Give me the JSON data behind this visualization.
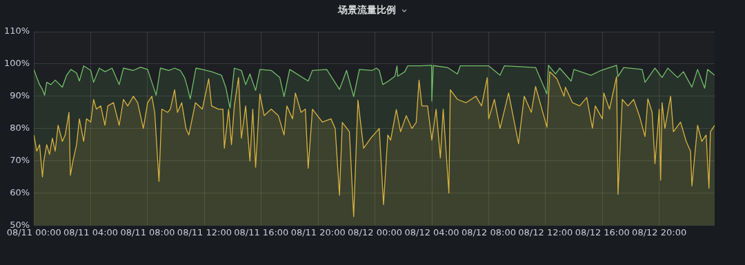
{
  "chart_data": {
    "type": "area",
    "title": "场景流量比例",
    "xlim": [
      "--08-11T00:00",
      "--08-12T23:54"
    ],
    "ylim": [
      50,
      110
    ],
    "xticks": [
      {
        "value": "--08-11T00:00",
        "label": "08/11 00:00"
      },
      {
        "value": "--08-11T04:00",
        "label": "08/11 04:00"
      },
      {
        "value": "--08-11T08:00",
        "label": "08/11 08:00"
      },
      {
        "value": "--08-11T12:00",
        "label": "08/11 12:00"
      },
      {
        "value": "--08-11T16:00",
        "label": "08/11 16:00"
      },
      {
        "value": "--08-11T20:00",
        "label": "08/11 20:00"
      },
      {
        "value": "--08-12T00:00",
        "label": "08/12 00:00"
      },
      {
        "value": "--08-12T04:00",
        "label": "08/12 04:00"
      },
      {
        "value": "--08-12T08:00",
        "label": "08/12 08:00"
      },
      {
        "value": "--08-12T12:00",
        "label": "08/12 12:00"
      },
      {
        "value": "--08-12T16:00",
        "label": "08/12 16:00"
      },
      {
        "value": "--08-12T20:00",
        "label": "08/12 20:00"
      }
    ],
    "yticks": [
      {
        "value": 50,
        "label": "50%"
      },
      {
        "value": 60,
        "label": "60%"
      },
      {
        "value": 70,
        "label": "70%"
      },
      {
        "value": 80,
        "label": "80%"
      },
      {
        "value": 90,
        "label": "90%"
      },
      {
        "value": 100,
        "label": "100%"
      },
      {
        "value": 110,
        "label": "110%"
      }
    ],
    "grid": true,
    "legend": false,
    "marker": "none",
    "line_style": "solid",
    "series": [
      {
        "color": "#73bf69",
        "x": [
          "--08-11T00:00",
          "--08-11T00:12",
          "--08-11T00:24",
          "--08-11T00:36",
          "--08-11T00:45",
          "--08-11T00:54",
          "--08-11T01:12",
          "--08-11T01:30",
          "--08-11T02:00",
          "--08-11T02:18",
          "--08-11T02:36",
          "--08-11T03:00",
          "--08-11T03:12",
          "--08-11T03:30",
          "--08-11T04:00",
          "--08-11T04:12",
          "--08-11T04:36",
          "--08-11T05:00",
          "--08-11T05:30",
          "--08-11T06:00",
          "--08-11T06:18",
          "--08-11T07:00",
          "--08-11T07:30",
          "--08-11T08:00",
          "--08-11T08:36",
          "--08-11T08:54",
          "--08-11T09:30",
          "--08-11T09:54",
          "--08-11T10:18",
          "--08-11T10:36",
          "--08-11T10:48",
          "--08-11T11:00",
          "--08-11T11:24",
          "--08-11T11:51",
          "--08-11T12:30",
          "--08-11T13:12",
          "--08-11T13:30",
          "--08-11T13:48",
          "--08-11T14:06",
          "--08-11T14:36",
          "--08-11T14:54",
          "--08-11T15:12",
          "--08-11T15:36",
          "--08-11T15:54",
          "--08-11T16:42",
          "--08-11T17:18",
          "--08-11T17:36",
          "--08-11T18:00",
          "--08-11T19:18",
          "--08-11T19:36",
          "--08-11T20:36",
          "--08-11T21:30",
          "--08-11T22:00",
          "--08-11T22:30",
          "--08-11T22:54",
          "--08-11T23:48",
          "--08-12T00:06",
          "--08-12T00:18",
          "--08-12T00:33",
          "--08-12T00:57",
          "--08-12T01:24",
          "--08-12T01:33",
          "--08-12T01:36",
          "--08-12T02:06",
          "--08-12T02:18",
          "--08-12T03:12",
          "--08-12T03:59",
          "--08-12T04:00",
          "--08-12T04:06",
          "--08-12T05:06",
          "--08-12T05:48",
          "--08-12T06:00",
          "--08-12T08:00",
          "--08-12T08:48",
          "--08-12T09:06",
          "--08-12T11:18",
          "--08-12T12:06",
          "--08-12T12:12",
          "--08-12T12:42",
          "--08-12T13:00",
          "--08-12T13:48",
          "--08-12T14:00",
          "--08-12T15:12",
          "--08-12T15:54",
          "--08-12T17:00",
          "--08-12T17:06",
          "--08-12T17:30",
          "--08-12T18:48",
          "--08-12T19:00",
          "--08-12T19:42",
          "--08-12T20:12",
          "--08-12T20:36",
          "--08-12T21:18",
          "--08-12T21:42",
          "--08-12T22:18",
          "--08-12T22:42",
          "--08-12T23:12",
          "--08-12T23:24",
          "--08-12T23:54"
        ],
        "values": [
          98.3,
          95.8,
          93.6,
          92.1,
          90.3,
          94.3,
          93.6,
          95,
          92.8,
          96.5,
          98.3,
          97.2,
          94.7,
          99.4,
          98,
          94.3,
          98.7,
          97.6,
          98.7,
          93.6,
          98.7,
          98,
          99,
          98.3,
          90.3,
          98.7,
          98,
          98.7,
          98,
          95.8,
          92.8,
          89.2,
          98.7,
          98.3,
          97.6,
          96.5,
          92.8,
          86.3,
          98.7,
          98,
          93.6,
          96.9,
          91.8,
          98.3,
          98,
          95.8,
          89.9,
          98.3,
          94.7,
          98,
          98.3,
          92.1,
          98,
          89.9,
          98.3,
          98,
          98.7,
          98,
          93.6,
          94.7,
          96.2,
          99.4,
          96.2,
          97.6,
          99.4,
          99.4,
          99.6,
          88.5,
          99.5,
          98.9,
          96.9,
          99.4,
          99.4,
          96.5,
          99.4,
          98.9,
          90.7,
          99.6,
          96.9,
          98.7,
          94.7,
          98.3,
          96.5,
          98,
          99.6,
          96.1,
          98.9,
          98.3,
          94.3,
          98.7,
          95.8,
          98.7,
          95.8,
          97.6,
          92.8,
          98.3,
          92.5,
          98.3,
          96.5
        ]
      },
      {
        "color": "#e8b13c",
        "x": [
          "--08-11T00:00",
          "--08-11T00:12",
          "--08-11T00:24",
          "--08-11T00:30",
          "--08-11T00:36",
          "--08-11T00:42",
          "--08-11T00:54",
          "--08-11T01:06",
          "--08-11T01:18",
          "--08-11T01:30",
          "--08-11T01:42",
          "--08-11T02:00",
          "--08-11T02:12",
          "--08-11T02:28",
          "--08-11T02:34",
          "--08-11T02:45",
          "--08-11T03:00",
          "--08-11T03:12",
          "--08-11T03:30",
          "--08-11T03:42",
          "--08-11T04:00",
          "--08-11T04:12",
          "--08-11T04:24",
          "--08-11T04:42",
          "--08-11T05:00",
          "--08-11T05:12",
          "--08-11T05:36",
          "--08-11T06:00",
          "--08-11T06:18",
          "--08-11T06:36",
          "--08-11T07:00",
          "--08-11T07:18",
          "--08-11T07:42",
          "--08-11T08:00",
          "--08-11T08:18",
          "--08-11T08:30",
          "--08-11T08:48",
          "--08-11T09:00",
          "--08-11T09:24",
          "--08-11T09:36",
          "--08-11T09:54",
          "--08-11T10:06",
          "--08-11T10:24",
          "--08-11T10:42",
          "--08-11T10:54",
          "--08-11T11:22",
          "--08-11T11:51",
          "--08-11T12:18",
          "--08-11T12:30",
          "--08-11T12:59",
          "--08-11T13:18",
          "--08-11T13:24",
          "--08-11T13:42",
          "--08-11T13:54",
          "--08-11T14:06",
          "--08-11T14:24",
          "--08-11T14:36",
          "--08-11T14:54",
          "--08-11T15:12",
          "--08-11T15:24",
          "--08-11T15:36",
          "--08-11T15:54",
          "--08-11T16:12",
          "--08-11T16:42",
          "--08-11T17:12",
          "--08-11T17:36",
          "--08-11T17:48",
          "--08-11T18:12",
          "--08-11T18:24",
          "--08-11T18:48",
          "--08-11T19:06",
          "--08-11T19:18",
          "--08-11T19:36",
          "--08-11T20:18",
          "--08-11T20:54",
          "--08-11T21:12",
          "--08-11T21:30",
          "--08-11T21:42",
          "--08-11T22:12",
          "--08-11T22:30",
          "--08-11T22:48",
          "--08-11T23:12",
          "--08-11T23:42",
          "--08-12T00:06",
          "--08-12T00:18",
          "--08-12T00:36",
          "--08-12T00:54",
          "--08-12T01:06",
          "--08-12T01:30",
          "--08-12T01:48",
          "--08-12T02:12",
          "--08-12T02:36",
          "--08-12T02:54",
          "--08-12T03:06",
          "--08-12T03:18",
          "--08-12T03:42",
          "--08-12T04:00",
          "--08-12T04:18",
          "--08-12T04:36",
          "--08-12T04:48",
          "--08-12T05:12",
          "--08-12T05:18",
          "--08-12T05:48",
          "--08-12T06:24",
          "--08-12T07:06",
          "--08-12T07:30",
          "--08-12T07:54",
          "--08-12T08:00",
          "--08-12T08:24",
          "--08-12T08:48",
          "--08-12T09:24",
          "--08-12T10:06",
          "--08-12T10:30",
          "--08-12T11:00",
          "--08-12T11:18",
          "--08-12T12:06",
          "--08-12T12:18",
          "--08-12T12:48",
          "--08-12T13:18",
          "--08-12T13:24",
          "--08-12T13:54",
          "--08-12T14:24",
          "--08-12T14:54",
          "--08-12T15:18",
          "--08-12T15:30",
          "--08-12T16:00",
          "--08-12T16:06",
          "--08-12T16:30",
          "--08-12T17:00",
          "--08-12T17:06",
          "--08-12T17:24",
          "--08-12T17:48",
          "--08-12T18:12",
          "--08-12T18:36",
          "--08-12T19:00",
          "--08-12T19:12",
          "--08-12T19:30",
          "--08-12T19:42",
          "--08-12T20:00",
          "--08-12T20:06",
          "--08-12T20:12",
          "--08-12T20:24",
          "--08-12T20:48",
          "--08-12T21:00",
          "--08-12T21:30",
          "--08-12T21:54",
          "--08-12T22:12",
          "--08-12T22:18",
          "--08-12T22:42",
          "--08-12T23:00",
          "--08-12T23:18",
          "--08-12T23:30",
          "--08-12T23:36",
          "--08-12T23:54"
        ],
        "values": [
          78,
          73,
          75,
          70,
          65,
          70,
          75,
          72,
          77,
          73,
          81,
          76,
          78,
          85,
          65.5,
          70,
          75,
          83,
          76,
          83,
          82,
          89,
          86,
          87,
          81,
          87,
          88,
          81,
          89,
          87,
          90,
          88,
          80,
          88,
          90,
          85,
          63.6,
          86,
          85,
          86,
          92,
          85,
          88,
          80,
          78,
          88,
          86,
          95.4,
          87,
          86,
          86,
          73.9,
          86,
          75,
          87,
          95.8,
          77,
          87,
          69.9,
          86,
          68,
          90.7,
          84,
          86,
          84,
          78,
          87,
          83,
          91,
          85,
          86,
          67.7,
          86,
          82,
          83,
          80,
          59.3,
          81.9,
          79,
          52.7,
          88.8,
          73.9,
          77,
          79,
          80,
          56.4,
          78,
          76.4,
          85.9,
          79,
          84,
          80,
          81.9,
          95,
          87,
          87,
          76.4,
          86,
          70.9,
          86,
          60,
          92,
          89,
          88,
          90,
          87,
          95.8,
          83,
          89,
          80,
          91,
          75.3,
          90,
          85,
          93,
          80.4,
          97.6,
          95.4,
          90,
          92.8,
          88,
          87,
          89.6,
          80.1,
          87,
          83,
          91,
          86,
          96.1,
          59.6,
          89,
          87,
          89,
          84,
          77.5,
          89.2,
          85,
          69.1,
          86,
          64,
          88,
          80,
          90,
          79,
          82,
          76,
          73,
          62.2,
          81,
          76,
          78,
          61.5,
          79,
          81
        ]
      }
    ]
  }
}
